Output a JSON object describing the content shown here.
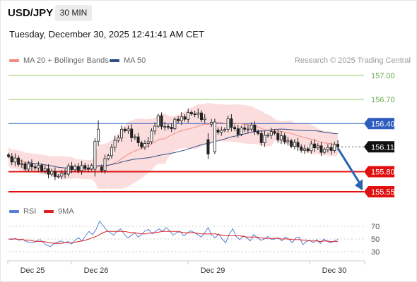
{
  "header": {
    "pair": "USD/JPY",
    "timeframe": "30 MIN",
    "datetime": "Tuesday, December 30, 2025 12:41:41 AM CET",
    "credit": "Research © 2025 Trading Central"
  },
  "legend": {
    "items": [
      {
        "label": "MA 20 + Bollinger Bands",
        "color": "#f28b82"
      },
      {
        "label": "MA 50",
        "color": "#2f4f86"
      }
    ],
    "rsi_items": [
      {
        "label": "RSI",
        "color": "#5b7fd6"
      },
      {
        "label": "9MA",
        "color": "#e02020"
      }
    ]
  },
  "colors": {
    "resistance": "#9acd67",
    "pivot": "#2c5dbf",
    "support": "#e01010",
    "last": "#111111",
    "candle": "#222222",
    "band": "#fbd2d2",
    "arrow": "#2a64b0"
  },
  "chart_data": [
    {
      "type": "candlestick",
      "title": "USD/JPY",
      "timeframe": "30 MIN",
      "x_ticks": [
        "Dec 25",
        "Dec 26",
        "Dec 29",
        "Dec 30"
      ],
      "ylim": [
        155.5,
        157.0
      ],
      "levels": [
        {
          "value": 157.0,
          "label": "157.00",
          "kind": "resistance"
        },
        {
          "value": 156.7,
          "label": "156.70",
          "kind": "resistance"
        },
        {
          "value": 156.4,
          "label": "156.40",
          "kind": "pivot"
        },
        {
          "value": 156.11,
          "label": "156.11",
          "kind": "last"
        },
        {
          "value": 155.8,
          "label": "155.80",
          "kind": "support"
        },
        {
          "value": 155.55,
          "label": "155.55",
          "kind": "support"
        }
      ],
      "trend_anchor_closes": [
        155.97,
        155.92,
        155.87,
        155.86,
        155.84,
        155.77,
        155.73,
        155.83,
        155.86,
        155.84,
        155.85,
        155.83,
        156.05,
        156.25,
        156.35,
        156.2,
        156.09,
        156.3,
        156.38,
        156.33,
        156.45,
        156.5,
        156.53,
        156.47,
        156.38,
        156.26,
        156.42,
        156.3,
        156.33,
        156.36,
        156.17,
        156.3,
        156.22,
        156.18,
        156.13,
        156.05,
        156.14,
        156.05,
        156.09,
        156.11
      ],
      "projection": {
        "from": 156.11,
        "to": 155.55
      },
      "series": [
        {
          "name": "MA 20 + Bollinger Bands",
          "color": "#f28b82"
        },
        {
          "name": "MA 50",
          "color": "#2f4f86"
        }
      ]
    },
    {
      "type": "line",
      "title": "RSI",
      "y_ticks": [
        "70",
        "50",
        "30"
      ],
      "ylim": [
        20,
        80
      ],
      "series": [
        {
          "name": "RSI",
          "color": "#5b7fd6",
          "values": [
            50,
            49,
            51,
            48,
            50,
            46,
            45,
            44,
            47,
            49,
            44,
            40,
            38,
            43,
            45,
            47,
            44,
            46,
            42,
            48,
            52,
            47,
            55,
            62,
            57,
            65,
            78,
            71,
            64,
            60,
            56,
            62,
            66,
            58,
            52,
            55,
            60,
            53,
            57,
            63,
            65,
            58,
            62,
            66,
            62,
            68,
            63,
            56,
            60,
            62,
            55,
            59,
            63,
            60,
            57,
            53,
            60,
            68,
            56,
            52,
            58,
            50,
            44,
            58,
            66,
            54,
            49,
            55,
            52,
            47,
            57,
            52,
            48,
            50,
            54,
            49,
            50,
            52,
            47,
            53,
            50,
            44,
            52,
            53,
            41,
            46,
            48,
            44,
            49,
            43,
            50,
            46,
            44,
            47,
            49
          ]
        },
        {
          "name": "9MA",
          "color": "#e02020",
          "values": [
            50,
            50,
            50,
            49,
            49,
            48,
            48,
            47,
            46,
            46,
            46,
            45,
            44,
            43,
            43,
            43,
            44,
            44,
            44,
            45,
            46,
            47,
            48,
            50,
            52,
            54,
            57,
            60,
            62,
            62,
            62,
            62,
            62,
            62,
            61,
            60,
            60,
            59,
            58,
            58,
            59,
            60,
            60,
            61,
            62,
            62,
            62,
            62,
            62,
            61,
            60,
            60,
            60,
            60,
            59,
            58,
            58,
            58,
            58,
            58,
            57,
            56,
            55,
            55,
            55,
            55,
            55,
            54,
            53,
            53,
            53,
            53,
            52,
            51,
            51,
            51,
            51,
            51,
            50,
            50,
            50,
            49,
            49,
            49,
            48,
            48,
            47,
            47,
            47,
            46,
            47,
            47,
            46,
            46,
            46
          ]
        }
      ]
    }
  ]
}
